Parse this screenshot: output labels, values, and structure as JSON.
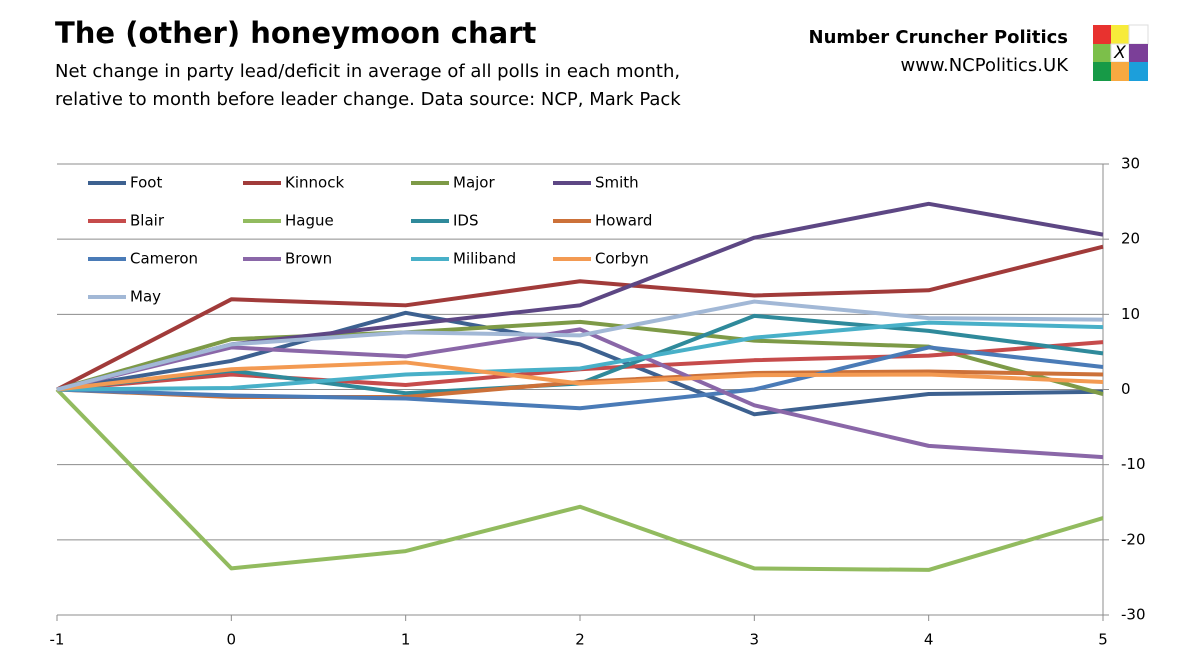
{
  "chart_data": {
    "type": "line",
    "title": "The (other) honeymoon chart",
    "subtitle": [
      "Net change in party lead/deficit in average of all polls in each month,",
      "relative to month before leader change. Data source: NCP, Mark Pack"
    ],
    "brand": "Number Cruncher Politics",
    "website": "www.NCPolitics.UK",
    "logo_mark": "X",
    "x": [
      -1,
      0,
      1,
      2,
      3,
      4,
      5
    ],
    "xlim": [
      -1,
      5
    ],
    "xticks": [
      -1,
      0,
      1,
      2,
      3,
      4,
      5
    ],
    "ylim": [
      -30,
      30
    ],
    "yticks": [
      -30,
      -20,
      -10,
      0,
      10,
      20,
      30
    ],
    "grid": true,
    "legend": "top-left",
    "series": [
      {
        "name": "Foot",
        "color": "#3d6190",
        "values": [
          0,
          3.8,
          10.2,
          6,
          -3.3,
          -0.6,
          -0.3
        ]
      },
      {
        "name": "Kinnock",
        "color": "#a13b3a",
        "values": [
          0,
          12,
          11.2,
          14.4,
          12.5,
          13.2,
          19
        ]
      },
      {
        "name": "Major",
        "color": "#7d9a47",
        "values": [
          0,
          6.7,
          7.6,
          9,
          6.5,
          5.7,
          -0.6
        ]
      },
      {
        "name": "Smith",
        "color": "#5d4784",
        "values": [
          0,
          6,
          8.6,
          11.2,
          20.2,
          24.7,
          20.6
        ]
      },
      {
        "name": "Blair",
        "color": "#c64b4b",
        "values": [
          0,
          2,
          0.6,
          2.7,
          3.9,
          4.5,
          6.3
        ]
      },
      {
        "name": "Hague",
        "color": "#92bb5f",
        "values": [
          0,
          -23.8,
          -21.5,
          -15.6,
          -23.8,
          -24,
          -17.1
        ]
      },
      {
        "name": "IDS",
        "color": "#2f8a9b",
        "values": [
          0,
          2.5,
          -0.5,
          0.8,
          9.8,
          7.8,
          4.8
        ]
      },
      {
        "name": "Howard",
        "color": "#cc7139",
        "values": [
          0,
          -1,
          -1,
          1,
          2.2,
          2.4,
          2
        ]
      },
      {
        "name": "Cameron",
        "color": "#4a7bb7",
        "values": [
          0,
          -0.8,
          -1.2,
          -2.5,
          0,
          5.6,
          3
        ]
      },
      {
        "name": "Brown",
        "color": "#8a67a8",
        "values": [
          0,
          5.6,
          4.4,
          8,
          -2.1,
          -7.5,
          -9
        ]
      },
      {
        "name": "Miliband",
        "color": "#48b0c8",
        "values": [
          0,
          0.2,
          2,
          2.8,
          6.9,
          8.9,
          8.3
        ]
      },
      {
        "name": "Corbyn",
        "color": "#f39a52",
        "values": [
          0,
          2.7,
          3.6,
          0.8,
          1.9,
          2,
          1
        ]
      },
      {
        "name": "May",
        "color": "#a2b8d6",
        "values": [
          0,
          6,
          7.6,
          7.2,
          11.7,
          9.5,
          9.3
        ]
      }
    ]
  }
}
